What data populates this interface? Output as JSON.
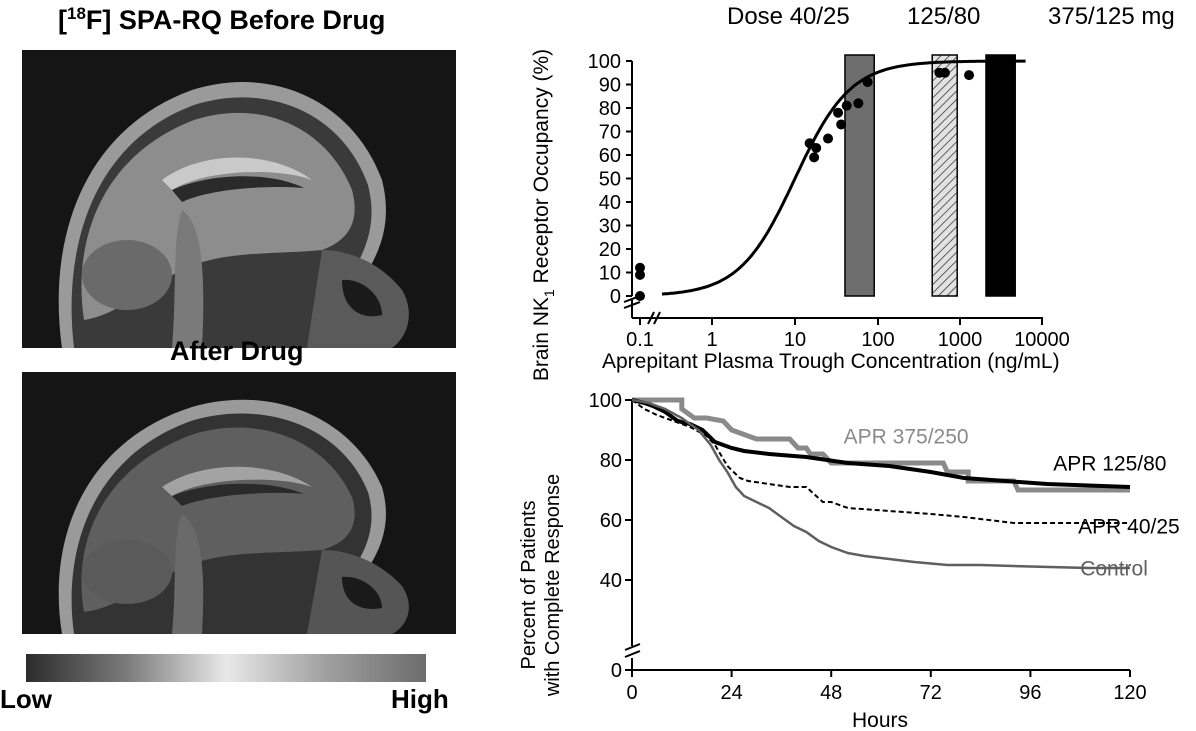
{
  "left_panel": {
    "title_before_prefix": "[",
    "title_before_sup": "18",
    "title_before_rest": "F] SPA-RQ Before Drug",
    "title_after": "After Drug",
    "scale_low": "Low",
    "scale_high": "High"
  },
  "chart_data": [
    {
      "type": "scatter",
      "title": "",
      "xlabel": "Aprepitant Plasma Trough Concentration (ng/mL)",
      "ylabel_prefix": "Brain NK",
      "ylabel_sub": "1",
      "ylabel_suffix": " Receptor Occupancy (%)",
      "x_scale": "log",
      "xlim": [
        0.25,
        10000
      ],
      "ylim": [
        0,
        100
      ],
      "x_ticks": [
        {
          "value": 0.1,
          "label": "0.1"
        },
        {
          "value": 1,
          "label": "1"
        },
        {
          "value": 10,
          "label": "10"
        },
        {
          "value": 100,
          "label": "100"
        },
        {
          "value": 1000,
          "label": "1000"
        },
        {
          "value": 10000,
          "label": "10000"
        }
      ],
      "y_ticks": [
        "0",
        "10",
        "20",
        "30",
        "40",
        "50",
        "60",
        "70",
        "80",
        "90",
        "100"
      ],
      "axis_breaks": "x and y",
      "dose_header": [
        {
          "text": "Dose 40/25"
        },
        {
          "text": "125/80"
        },
        {
          "text": "375/125 mg"
        }
      ],
      "dose_bars": [
        {
          "dose": "40/25",
          "x_range": [
            40,
            90
          ],
          "color": "#6e6e6e",
          "pattern": "solid"
        },
        {
          "dose": "125/80",
          "x_range": [
            450,
            900
          ],
          "color": "#cfcfcf",
          "pattern": "hatched"
        },
        {
          "dose": "375/125",
          "x_range": [
            2000,
            4500
          ],
          "color": "#000000",
          "pattern": "solid"
        }
      ],
      "points": [
        {
          "x": 0.1,
          "y": 12
        },
        {
          "x": 0.1,
          "y": 9
        },
        {
          "x": 0.1,
          "y": 0
        },
        {
          "x": 15,
          "y": 65
        },
        {
          "x": 17,
          "y": 59
        },
        {
          "x": 18,
          "y": 63
        },
        {
          "x": 25,
          "y": 67
        },
        {
          "x": 33,
          "y": 78
        },
        {
          "x": 36,
          "y": 73
        },
        {
          "x": 42,
          "y": 81
        },
        {
          "x": 58,
          "y": 82
        },
        {
          "x": 75,
          "y": 91
        },
        {
          "x": 550,
          "y": 95
        },
        {
          "x": 640,
          "y": 95
        },
        {
          "x": 1250,
          "y": 94
        }
      ],
      "fit_curve": {
        "model": "Emax",
        "emax": 100,
        "ec50": 10,
        "hill": 1.3,
        "x_range": [
          0.25,
          6000
        ]
      }
    },
    {
      "type": "line",
      "title": "",
      "xlabel": "Hours",
      "ylabel_line1": "Percent of Patients",
      "ylabel_line2": "with Complete Response",
      "xlim": [
        0,
        120
      ],
      "ylim": [
        37,
        100
      ],
      "x_ticks": [
        "0",
        "24",
        "48",
        "72",
        "96",
        "120"
      ],
      "y_ticks": [
        {
          "value": 40,
          "label": "40"
        },
        {
          "value": 60,
          "label": "60"
        },
        {
          "value": 80,
          "label": "80"
        },
        {
          "value": 100,
          "label": "100"
        },
        {
          "value": 0,
          "label": "0"
        }
      ],
      "axis_break": "y",
      "series": [
        {
          "name": "APR 375/250",
          "color": "#8a8a8a",
          "width": 5,
          "dash": "",
          "label_at": {
            "x": 51,
            "y": 85.5
          },
          "points": [
            [
              0,
              100
            ],
            [
              12,
              100
            ],
            [
              12,
              97
            ],
            [
              15,
              94
            ],
            [
              18,
              94
            ],
            [
              22,
              93
            ],
            [
              24,
              90
            ],
            [
              30,
              87
            ],
            [
              38,
              87
            ],
            [
              40,
              84
            ],
            [
              42,
              84
            ],
            [
              43,
              82
            ],
            [
              46,
              82
            ],
            [
              48,
              79
            ],
            [
              54,
              79
            ],
            [
              66,
              79
            ],
            [
              75,
              79
            ],
            [
              76,
              76
            ],
            [
              81,
              76
            ],
            [
              81,
              73
            ],
            [
              92,
              73
            ],
            [
              93,
              70
            ],
            [
              120,
              70
            ]
          ]
        },
        {
          "name": "APR 125/80",
          "color": "#000000",
          "width": 4,
          "dash": "",
          "label_at": {
            "x": 101.5,
            "y": 76.5
          },
          "points": [
            [
              0,
              100
            ],
            [
              3,
              99
            ],
            [
              5,
              98
            ],
            [
              8,
              96
            ],
            [
              11,
              93
            ],
            [
              14,
              92
            ],
            [
              17,
              90
            ],
            [
              20,
              86
            ],
            [
              24,
              84
            ],
            [
              27,
              83
            ],
            [
              33,
              82
            ],
            [
              42,
              81
            ],
            [
              52,
              79
            ],
            [
              62,
              78
            ],
            [
              72,
              76
            ],
            [
              80,
              74
            ],
            [
              90,
              73
            ],
            [
              100,
              72
            ],
            [
              110,
              71.5
            ],
            [
              120,
              71
            ]
          ]
        },
        {
          "name": "APR 40/25",
          "color": "#000000",
          "width": 2,
          "dash": "5,3",
          "label_at": {
            "x": 107.5,
            "y": 55.5
          },
          "points": [
            [
              0,
              100
            ],
            [
              3,
              97
            ],
            [
              6,
              95
            ],
            [
              10,
              93
            ],
            [
              14,
              91
            ],
            [
              18,
              88
            ],
            [
              20,
              85
            ],
            [
              23,
              78
            ],
            [
              26,
              74
            ],
            [
              28,
              73
            ],
            [
              33,
              72
            ],
            [
              38,
              71
            ],
            [
              42,
              71
            ],
            [
              46,
              66
            ],
            [
              48,
              66
            ],
            [
              52,
              64
            ],
            [
              62,
              63
            ],
            [
              72,
              62
            ],
            [
              80,
              61
            ],
            [
              92,
              59
            ],
            [
              104,
              59
            ],
            [
              120,
              59
            ]
          ]
        },
        {
          "name": "Control",
          "color": "#5f5f5f",
          "width": 2.5,
          "dash": "",
          "label_at": {
            "x": 108,
            "y": 41.5
          },
          "points": [
            [
              0,
              100
            ],
            [
              4,
              99
            ],
            [
              8,
              97
            ],
            [
              12,
              94
            ],
            [
              16,
              90
            ],
            [
              19,
              85
            ],
            [
              21,
              80
            ],
            [
              23,
              76
            ],
            [
              25,
              71
            ],
            [
              27,
              68
            ],
            [
              30,
              66
            ],
            [
              33,
              64
            ],
            [
              36,
              61
            ],
            [
              39,
              58
            ],
            [
              42,
              56
            ],
            [
              45,
              53
            ],
            [
              48,
              51
            ],
            [
              52,
              49
            ],
            [
              56,
              48
            ],
            [
              62,
              47
            ],
            [
              68,
              46
            ],
            [
              76,
              45
            ],
            [
              84,
              45
            ],
            [
              96,
              44.5
            ],
            [
              110,
              44
            ],
            [
              120,
              44
            ]
          ]
        }
      ]
    }
  ]
}
